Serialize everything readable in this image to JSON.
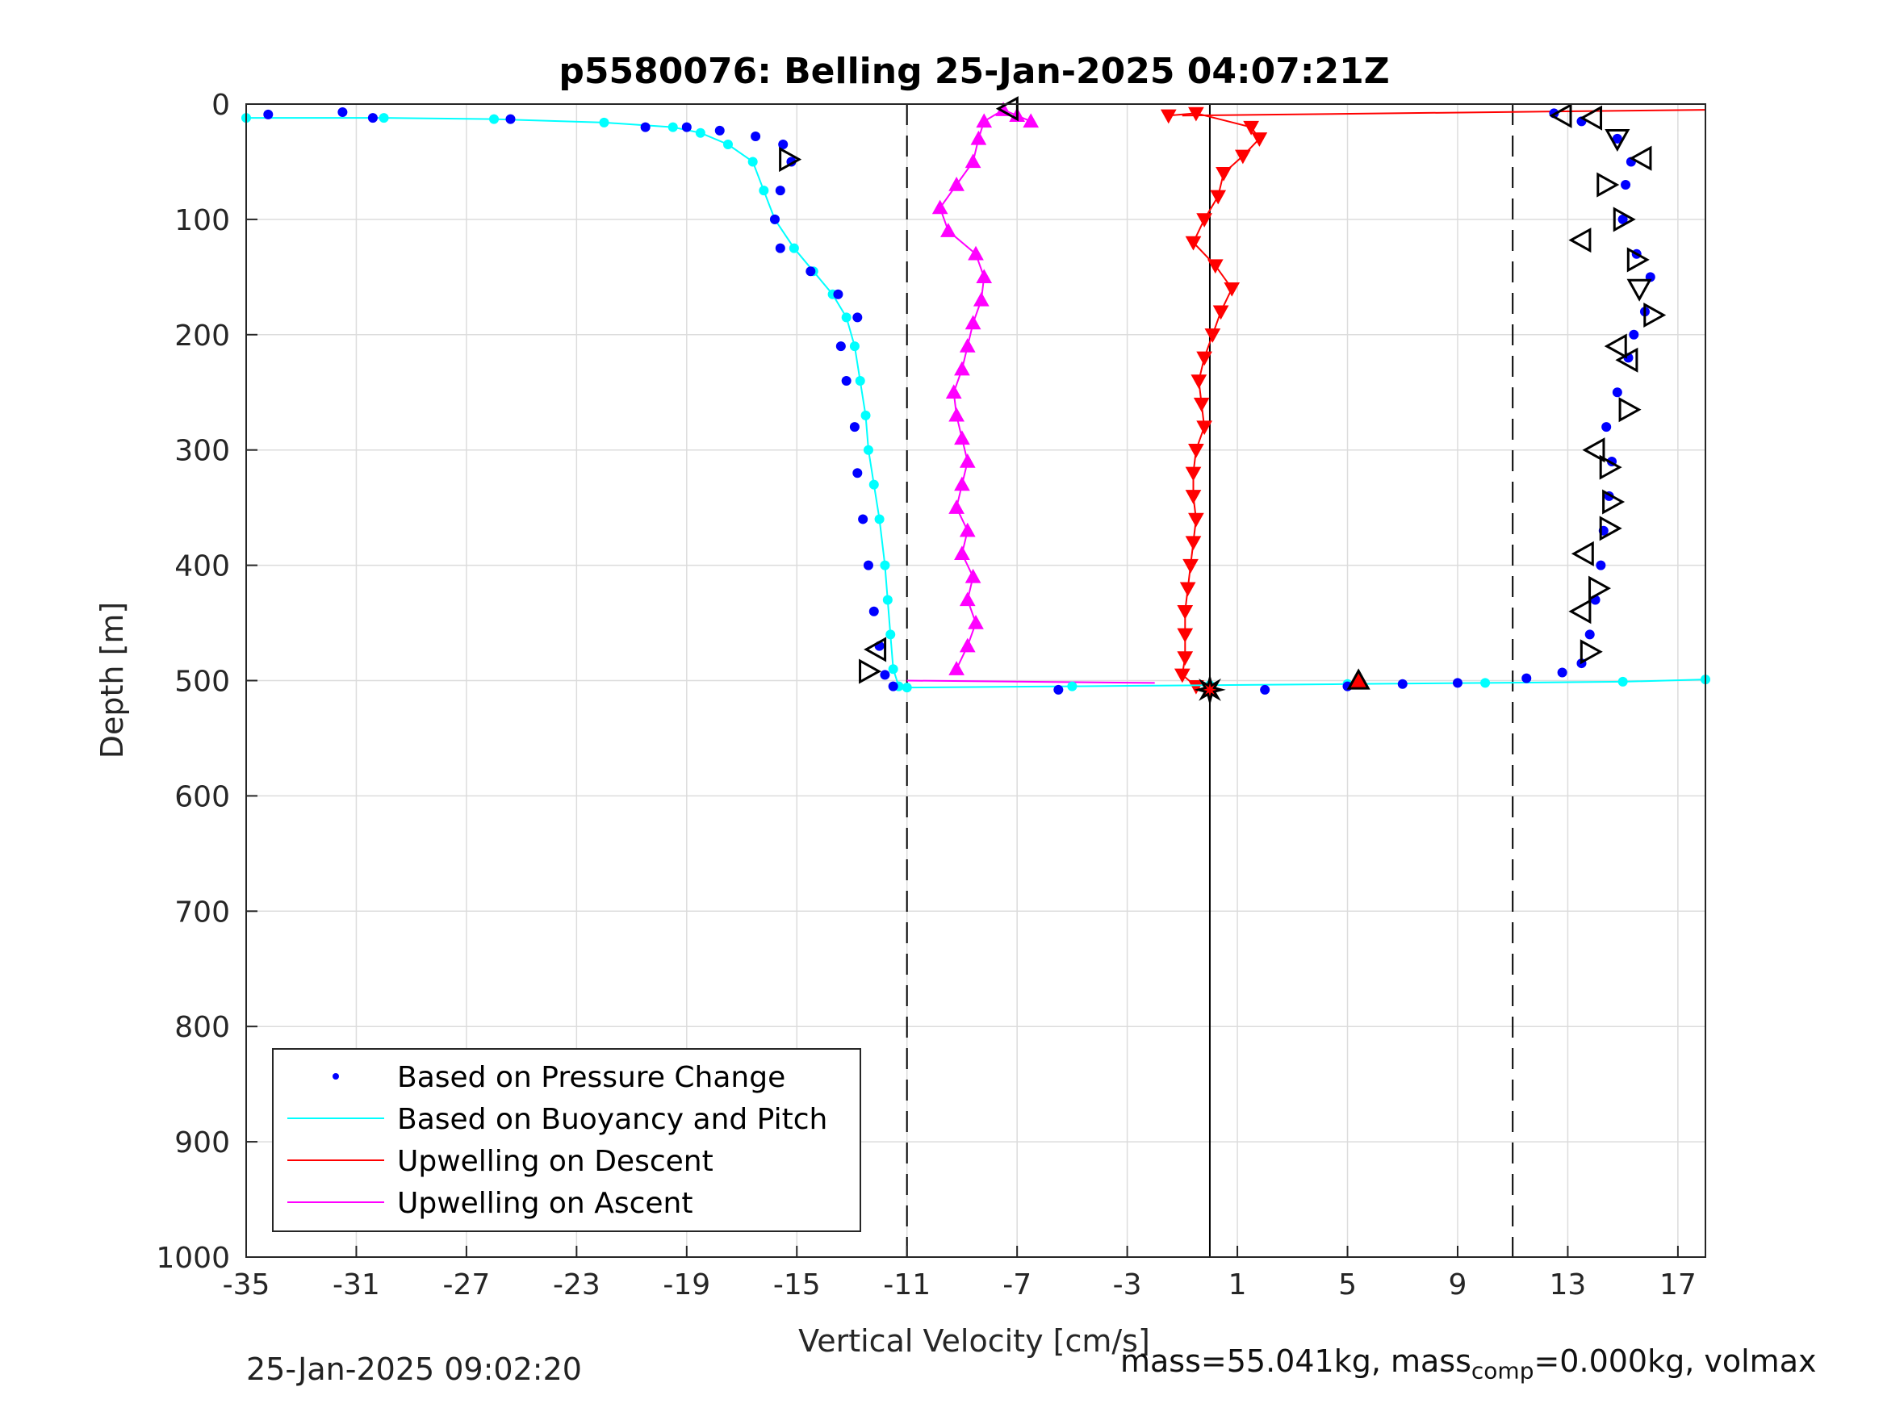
{
  "chart_data": {
    "type": "scatter",
    "title": "p5580076: Belling 25-Jan-2025 04:07:21Z",
    "xlabel": "Vertical Velocity [cm/s]",
    "ylabel": "Depth [m]",
    "xlim": [
      -35,
      18
    ],
    "ylim": [
      0,
      1000
    ],
    "y_reversed": true,
    "xticks": [
      -35,
      -31,
      -27,
      -23,
      -19,
      -15,
      -11,
      -7,
      -3,
      1,
      5,
      9,
      13,
      17
    ],
    "yticks": [
      0,
      100,
      200,
      300,
      400,
      500,
      600,
      700,
      800,
      900,
      1000
    ],
    "grid": true,
    "legend_position": "bottom-left",
    "reference_lines": {
      "dashed_x": [
        -11,
        11
      ],
      "solid_x": [
        0
      ]
    },
    "series": [
      {
        "name": "Based on Pressure Change",
        "color": "#0000ff",
        "marker": "dot",
        "descent": [
          [
            -34.2,
            9
          ],
          [
            -31.5,
            7
          ],
          [
            -30.4,
            12
          ],
          [
            -25.4,
            13
          ],
          [
            -20.5,
            20
          ],
          [
            -19,
            20
          ],
          [
            -17.8,
            23
          ],
          [
            -16.5,
            28
          ],
          [
            -15.5,
            35
          ],
          [
            -15.2,
            50
          ],
          [
            -15.6,
            75
          ],
          [
            -15.8,
            100
          ],
          [
            -15.6,
            125
          ],
          [
            -14.5,
            145
          ],
          [
            -13.5,
            165
          ],
          [
            -12.8,
            185
          ],
          [
            -13.4,
            210
          ],
          [
            -13.2,
            240
          ],
          [
            -12.9,
            280
          ],
          [
            -12.8,
            320
          ],
          [
            -12.6,
            360
          ],
          [
            -12.4,
            400
          ],
          [
            -12.2,
            440
          ],
          [
            -12.0,
            470
          ],
          [
            -11.8,
            495
          ],
          [
            -11.5,
            505
          ]
        ],
        "ascent": [
          [
            -5.5,
            508
          ],
          [
            2.0,
            508
          ],
          [
            5.0,
            505
          ],
          [
            7.0,
            503
          ],
          [
            9.0,
            502
          ],
          [
            11.5,
            498
          ],
          [
            12.8,
            493
          ],
          [
            13.5,
            485
          ],
          [
            13.8,
            460
          ],
          [
            14.0,
            430
          ],
          [
            14.2,
            400
          ],
          [
            14.3,
            370
          ],
          [
            14.5,
            340
          ],
          [
            14.6,
            310
          ],
          [
            14.4,
            280
          ],
          [
            14.8,
            250
          ],
          [
            15.2,
            220
          ],
          [
            15.4,
            200
          ],
          [
            15.8,
            180
          ],
          [
            16.0,
            150
          ],
          [
            15.5,
            130
          ],
          [
            15.0,
            100
          ],
          [
            15.1,
            70
          ],
          [
            15.3,
            50
          ],
          [
            14.8,
            30
          ],
          [
            13.5,
            15
          ],
          [
            12.5,
            8
          ]
        ]
      },
      {
        "name": "Based on Buoyancy and Pitch",
        "color": "#00ffff",
        "marker": "line",
        "descent": [
          [
            -35,
            12
          ],
          [
            -30,
            12
          ],
          [
            -26,
            13
          ],
          [
            -22,
            16
          ],
          [
            -19.5,
            20
          ],
          [
            -18.5,
            25
          ],
          [
            -17.5,
            35
          ],
          [
            -16.6,
            50
          ],
          [
            -16.2,
            75
          ],
          [
            -15.8,
            100
          ],
          [
            -15.1,
            125
          ],
          [
            -14.4,
            145
          ],
          [
            -13.7,
            165
          ],
          [
            -13.2,
            185
          ],
          [
            -12.9,
            210
          ],
          [
            -12.7,
            240
          ],
          [
            -12.5,
            270
          ],
          [
            -12.4,
            300
          ],
          [
            -12.2,
            330
          ],
          [
            -12.0,
            360
          ],
          [
            -11.8,
            400
          ],
          [
            -11.7,
            430
          ],
          [
            -11.6,
            460
          ],
          [
            -11.5,
            490
          ],
          [
            -11.3,
            505
          ]
        ],
        "ascent": [
          [
            -11,
            506
          ],
          [
            -5,
            505
          ],
          [
            0,
            504
          ],
          [
            5,
            503
          ],
          [
            10,
            502
          ],
          [
            15,
            501
          ],
          [
            18,
            499
          ]
        ]
      },
      {
        "name": "Upwelling on Descent",
        "color": "#ff0000",
        "marker": "triangle-down",
        "values": [
          [
            -1.5,
            10
          ],
          [
            -0.5,
            8
          ],
          [
            1.5,
            20
          ],
          [
            1.8,
            30
          ],
          [
            1.2,
            45
          ],
          [
            0.5,
            60
          ],
          [
            0.3,
            80
          ],
          [
            -0.2,
            100
          ],
          [
            -0.6,
            120
          ],
          [
            0.2,
            140
          ],
          [
            0.8,
            160
          ],
          [
            0.4,
            180
          ],
          [
            0.1,
            200
          ],
          [
            -0.2,
            220
          ],
          [
            -0.4,
            240
          ],
          [
            -0.3,
            260
          ],
          [
            -0.2,
            280
          ],
          [
            -0.5,
            300
          ],
          [
            -0.6,
            320
          ],
          [
            -0.6,
            340
          ],
          [
            -0.5,
            360
          ],
          [
            -0.6,
            380
          ],
          [
            -0.7,
            400
          ],
          [
            -0.8,
            420
          ],
          [
            -0.9,
            440
          ],
          [
            -0.9,
            460
          ],
          [
            -0.9,
            480
          ],
          [
            -1.0,
            495
          ],
          [
            -0.5,
            505
          ]
        ],
        "connector": [
          [
            -1,
            10
          ],
          [
            18,
            5
          ]
        ]
      },
      {
        "name": "Upwelling on Ascent",
        "color": "#ff00ff",
        "marker": "triangle-up",
        "values": [
          [
            -9.2,
            490
          ],
          [
            -8.8,
            470
          ],
          [
            -8.5,
            450
          ],
          [
            -8.8,
            430
          ],
          [
            -8.6,
            410
          ],
          [
            -9.0,
            390
          ],
          [
            -8.8,
            370
          ],
          [
            -9.2,
            350
          ],
          [
            -9.0,
            330
          ],
          [
            -8.8,
            310
          ],
          [
            -9.0,
            290
          ],
          [
            -9.2,
            270
          ],
          [
            -9.3,
            250
          ],
          [
            -9.0,
            230
          ],
          [
            -8.8,
            210
          ],
          [
            -8.6,
            190
          ],
          [
            -8.3,
            170
          ],
          [
            -8.2,
            150
          ],
          [
            -8.5,
            130
          ],
          [
            -9.5,
            110
          ],
          [
            -9.8,
            90
          ],
          [
            -9.2,
            70
          ],
          [
            -8.6,
            50
          ],
          [
            -8.4,
            30
          ],
          [
            -8.2,
            15
          ],
          [
            -7.5,
            5
          ],
          [
            -7.0,
            10
          ],
          [
            -6.5,
            15
          ]
        ],
        "connector": [
          [
            -11,
            500
          ],
          [
            -2,
            502
          ]
        ]
      }
    ],
    "extra_markers": [
      {
        "name": "open-triangle-left",
        "points": [
          [
            -7.3,
            4
          ],
          [
            12.8,
            10
          ],
          [
            -12.1,
            473
          ],
          [
            13.9,
            12
          ],
          [
            15.7,
            47
          ],
          [
            13.5,
            118
          ],
          [
            14.8,
            210
          ],
          [
            15.2,
            222
          ],
          [
            14.0,
            300
          ],
          [
            13.6,
            390
          ],
          [
            13.5,
            440
          ]
        ]
      },
      {
        "name": "open-triangle-right",
        "points": [
          [
            -15.3,
            48
          ],
          [
            -12.4,
            492
          ],
          [
            14.4,
            70
          ],
          [
            15.0,
            100
          ],
          [
            15.5,
            135
          ],
          [
            16.1,
            183
          ],
          [
            15.2,
            265
          ],
          [
            14.5,
            315
          ],
          [
            14.6,
            345
          ],
          [
            14.5,
            368
          ],
          [
            14.1,
            420
          ],
          [
            13.8,
            475
          ]
        ]
      },
      {
        "name": "open-triangle-down",
        "points": [
          [
            14.8,
            30
          ],
          [
            15.6,
            160
          ]
        ]
      },
      {
        "name": "red-triangle-marker",
        "points": [
          [
            5.4,
            500
          ]
        ]
      },
      {
        "name": "surfacing-star-marker",
        "points": [
          [
            0,
            508
          ]
        ]
      }
    ]
  },
  "legend": {
    "items": [
      {
        "label": "Based on Pressure Change",
        "symbol": "dot",
        "color": "#0000ff"
      },
      {
        "label": "Based on Buoyancy and Pitch",
        "symbol": "line",
        "color": "#00ffff"
      },
      {
        "label": "Upwelling on Descent",
        "symbol": "line",
        "color": "#ff0000"
      },
      {
        "label": "Upwelling on Ascent",
        "symbol": "line",
        "color": "#ff00ff"
      }
    ]
  },
  "footer": {
    "timestamp": "25-Jan-2025 09:02:20",
    "mass_text": "mass=55.041kg, mass",
    "sub_text": "comp",
    "rest_text": "=0.000kg, volmax"
  }
}
